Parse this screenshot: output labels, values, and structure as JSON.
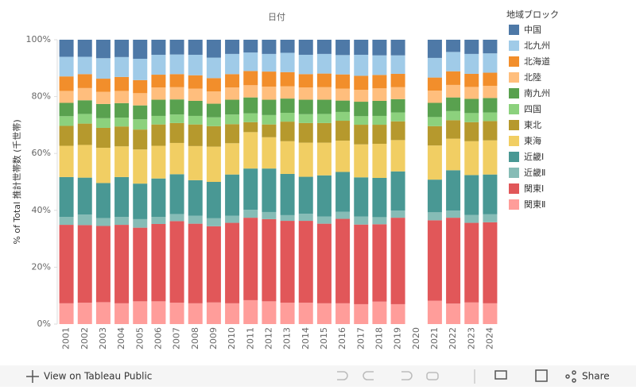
{
  "chart_data": {
    "type": "stacked_bar_100",
    "title": "日付",
    "y_label": "% of Total 推計世帯数 (千世帯)",
    "legend_title": "地域ブロック",
    "legend_position": "right",
    "categories": [
      "2001",
      "2002",
      "2003",
      "2004",
      "2005",
      "2006",
      "2007",
      "2008",
      "2009",
      "2010",
      "2011",
      "2012",
      "2013",
      "2014",
      "2015",
      "2016",
      "2017",
      "2018",
      "2019",
      "2020",
      "2021",
      "2022",
      "2023",
      "2024"
    ],
    "ylim": [
      0,
      100
    ],
    "yticks": [
      {
        "value": 0,
        "label": "0%"
      },
      {
        "value": 20,
        "label": "20%"
      },
      {
        "value": 40,
        "label": "40%"
      },
      {
        "value": 60,
        "label": "60%"
      },
      {
        "value": 80,
        "label": "80%"
      },
      {
        "value": 100,
        "label": "100%"
      }
    ],
    "series": [
      {
        "name": "中国",
        "color": "#4e79a7",
        "values": [
          6.0,
          6.0,
          6.5,
          6.1,
          6.7,
          5.3,
          5.2,
          5.3,
          6.3,
          5.0,
          4.5,
          5.0,
          4.6,
          5.3,
          5.0,
          5.4,
          5.3,
          5.5,
          5.5,
          null,
          6.4,
          4.3,
          5.0,
          4.8
        ]
      },
      {
        "name": "北九州",
        "color": "#a0cbe8",
        "values": [
          6.9,
          6.1,
          7.2,
          7.0,
          7.5,
          7.0,
          6.9,
          7.2,
          7.2,
          7.1,
          6.5,
          6.2,
          6.8,
          6.8,
          6.9,
          6.8,
          7.4,
          6.9,
          6.5,
          null,
          6.9,
          6.8,
          7.0,
          6.8
        ]
      },
      {
        "name": "北海道",
        "color": "#f28e2b",
        "values": [
          5.1,
          4.9,
          4.6,
          4.9,
          4.6,
          4.5,
          4.6,
          4.7,
          4.7,
          4.7,
          5.0,
          5.3,
          5.0,
          4.7,
          4.8,
          5.0,
          4.9,
          4.7,
          4.7,
          null,
          4.6,
          4.8,
          4.6,
          4.6
        ]
      },
      {
        "name": "北陸",
        "color": "#ffbe7d",
        "values": [
          4.2,
          4.3,
          4.3,
          4.3,
          4.3,
          4.3,
          4.3,
          4.3,
          4.3,
          4.3,
          4.3,
          4.6,
          4.3,
          4.3,
          4.4,
          4.2,
          4.2,
          4.4,
          4.2,
          null,
          4.3,
          4.4,
          4.2,
          4.3
        ]
      },
      {
        "name": "南九州",
        "color": "#59a14f",
        "values": [
          4.7,
          4.8,
          5.0,
          5.1,
          4.9,
          5.7,
          5.3,
          5.3,
          4.8,
          5.2,
          5.6,
          5.4,
          5.0,
          5.1,
          5.0,
          4.0,
          5.1,
          5.3,
          4.7,
          null,
          5.0,
          4.8,
          5.0,
          5.1
        ]
      },
      {
        "name": "四国",
        "color": "#8cd17d",
        "values": [
          3.4,
          3.4,
          3.4,
          3.1,
          3.6,
          3.0,
          3.0,
          3.0,
          3.1,
          3.4,
          3.1,
          3.3,
          3.1,
          3.1,
          3.2,
          3.1,
          3.0,
          3.1,
          3.1,
          null,
          3.2,
          3.2,
          3.2,
          3.0
        ]
      },
      {
        "name": "東北",
        "color": "#b6992d",
        "values": [
          7.0,
          7.5,
          7.0,
          7.0,
          7.0,
          7.5,
          7.0,
          7.6,
          7.2,
          6.7,
          3.5,
          4.5,
          6.9,
          6.9,
          6.9,
          7.0,
          6.9,
          6.7,
          6.6,
          null,
          6.8,
          6.5,
          6.7,
          6.8
        ]
      },
      {
        "name": "東海",
        "color": "#f1ce63",
        "values": [
          11.0,
          11.5,
          12.4,
          10.8,
          12.0,
          11.5,
          11.0,
          12.0,
          12.4,
          11.0,
          12.8,
          11.0,
          11.5,
          12.0,
          11.5,
          11.0,
          11.6,
          12.0,
          11.0,
          null,
          12.0,
          11.1,
          11.9,
          12.0
        ]
      },
      {
        "name": "近畿Ⅰ",
        "color": "#499894",
        "values": [
          14.0,
          13.0,
          12.3,
          14.0,
          12.5,
          13.5,
          14.0,
          12.5,
          12.8,
          14.5,
          14.5,
          15.3,
          14.5,
          13.0,
          14.5,
          14.0,
          13.8,
          13.8,
          13.8,
          null,
          11.5,
          14.2,
          14.0,
          14.0
        ]
      },
      {
        "name": "近畿Ⅱ",
        "color": "#86bcb6",
        "values": [
          2.8,
          3.7,
          2.8,
          2.8,
          3.0,
          2.5,
          2.5,
          2.8,
          2.8,
          2.5,
          2.8,
          2.5,
          2.0,
          2.5,
          2.5,
          2.5,
          2.8,
          2.5,
          2.5,
          null,
          2.8,
          2.5,
          2.8,
          2.8
        ]
      },
      {
        "name": "関東Ⅰ",
        "color": "#e15759",
        "values": [
          27.6,
          27.3,
          26.8,
          27.6,
          25.9,
          27.2,
          28.7,
          28.0,
          26.8,
          28.3,
          29.0,
          28.9,
          28.8,
          28.8,
          28.0,
          29.7,
          28.0,
          27.2,
          30.4,
          null,
          28.3,
          30.2,
          28.0,
          28.5
        ]
      },
      {
        "name": "関東Ⅱ",
        "color": "#ff9d9a",
        "values": [
          7.3,
          7.5,
          7.7,
          7.3,
          8.0,
          8.0,
          7.5,
          7.3,
          7.6,
          7.3,
          8.4,
          8.0,
          7.5,
          7.5,
          7.3,
          7.3,
          7.0,
          7.9,
          7.0,
          null,
          8.2,
          7.2,
          7.6,
          7.3
        ]
      }
    ]
  },
  "footer": {
    "view_link": "View on Tableau Public",
    "share": "Share"
  }
}
